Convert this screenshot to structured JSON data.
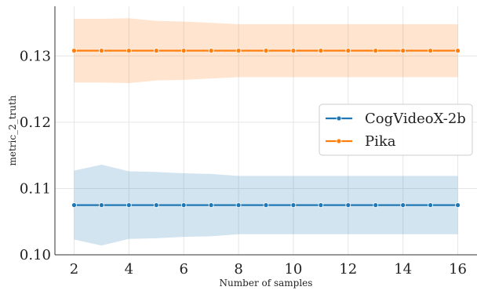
{
  "chart_data": {
    "type": "line",
    "xlabel": "Number of samples",
    "ylabel": "metric_2_truth",
    "x": [
      2,
      3,
      4,
      5,
      6,
      7,
      8,
      9,
      10,
      11,
      12,
      13,
      14,
      15,
      16
    ],
    "xticks": [
      "2",
      "4",
      "6",
      "8",
      "10",
      "12",
      "14",
      "16"
    ],
    "yticks": [
      "0.10",
      "0.11",
      "0.12",
      "0.13"
    ],
    "xlim": [
      1.3,
      16.7
    ],
    "ylim": [
      0.1,
      0.1375
    ],
    "grid": true,
    "legend_position": "center-right",
    "series": [
      {
        "name": "CogVideoX-2b",
        "color": "#1f77b4",
        "values": [
          0.1075,
          0.1075,
          0.1075,
          0.1075,
          0.1075,
          0.1075,
          0.1075,
          0.1075,
          0.1075,
          0.1075,
          0.1075,
          0.1075,
          0.1075,
          0.1075,
          0.1075
        ],
        "lower": [
          0.1023,
          0.1014,
          0.1024,
          0.1025,
          0.1027,
          0.1028,
          0.1031,
          0.1031,
          0.1031,
          0.1031,
          0.1031,
          0.1031,
          0.1031,
          0.1031,
          0.1031
        ],
        "upper": [
          0.1127,
          0.1136,
          0.1126,
          0.1125,
          0.1123,
          0.1122,
          0.1119,
          0.1119,
          0.1119,
          0.1119,
          0.1119,
          0.1119,
          0.1119,
          0.1119,
          0.1119
        ]
      },
      {
        "name": "Pika",
        "color": "#ff7f0e",
        "values": [
          0.1308,
          0.1308,
          0.1308,
          0.1308,
          0.1308,
          0.1308,
          0.1308,
          0.1308,
          0.1308,
          0.1308,
          0.1308,
          0.1308,
          0.1308,
          0.1308,
          0.1308
        ],
        "lower": [
          0.126,
          0.126,
          0.1259,
          0.1263,
          0.1264,
          0.1266,
          0.1268,
          0.1268,
          0.1268,
          0.1268,
          0.1268,
          0.1268,
          0.1268,
          0.1268,
          0.1268
        ],
        "upper": [
          0.1356,
          0.1356,
          0.1357,
          0.1353,
          0.1352,
          0.135,
          0.1348,
          0.1348,
          0.1348,
          0.1348,
          0.1348,
          0.1348,
          0.1348,
          0.1348,
          0.1348
        ]
      }
    ]
  }
}
